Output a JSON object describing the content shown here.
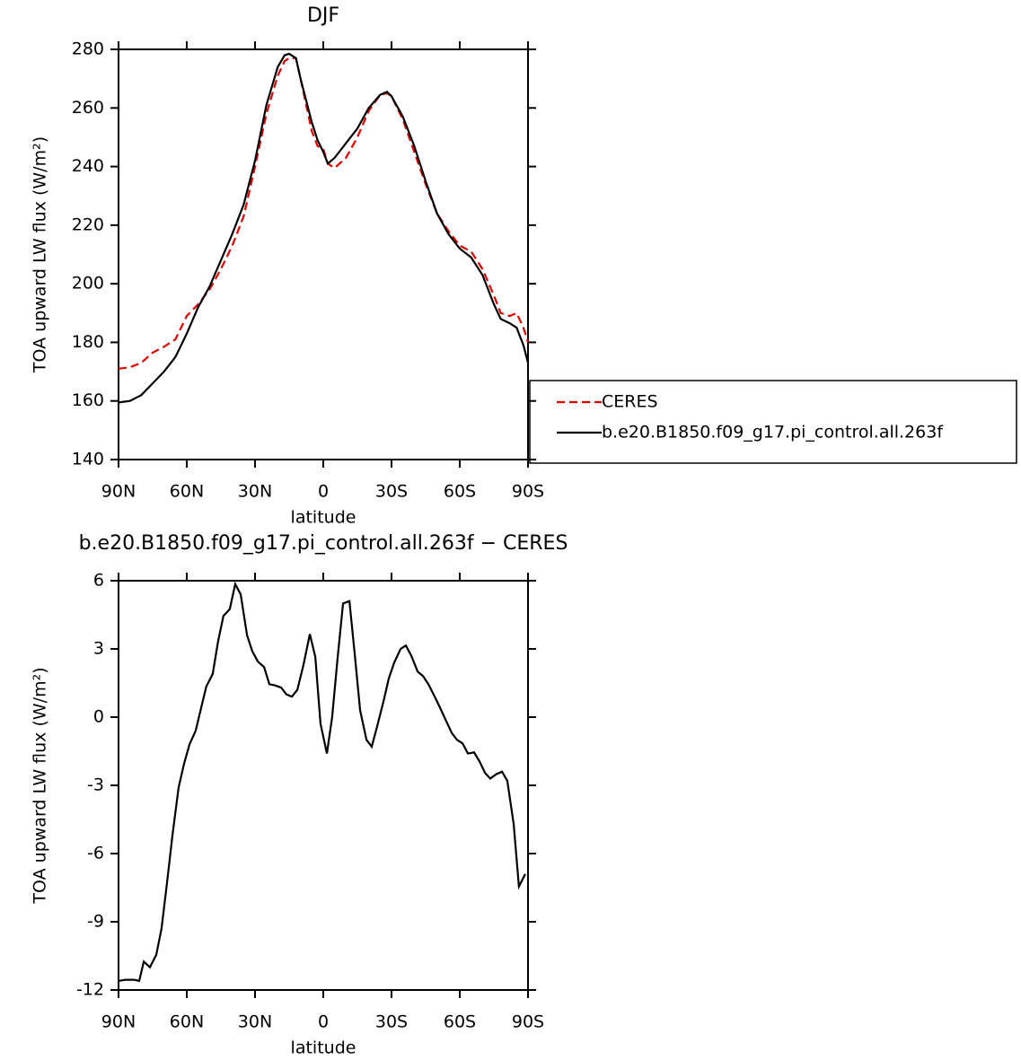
{
  "chart_data": [
    {
      "type": "line",
      "title": "DJF",
      "x_label": "latitude",
      "y_label": "TOA upward LW flux (W/m²)",
      "xlim": [
        90,
        -90
      ],
      "xticks": [
        {
          "value": 90,
          "label": "90N"
        },
        {
          "value": 60,
          "label": "60N"
        },
        {
          "value": 30,
          "label": "30N"
        },
        0,
        {
          "value": -30,
          "label": "30S"
        },
        {
          "value": -60,
          "label": "60S"
        },
        {
          "value": -90,
          "label": "90S"
        }
      ],
      "ylim": [
        140,
        280
      ],
      "yticks": [
        140,
        160,
        180,
        200,
        220,
        240,
        260,
        280
      ],
      "legend": "outside-right",
      "x": [
        90,
        85,
        80,
        75,
        70,
        65,
        60,
        55,
        50,
        45,
        40,
        35,
        30,
        25,
        20,
        17,
        15,
        12,
        10,
        5,
        2.5,
        0,
        -2,
        -5,
        -10,
        -15,
        -20,
        -25,
        -28,
        -30,
        -35,
        -40,
        -45,
        -50,
        -55,
        -60,
        -65,
        -70,
        -75,
        -78,
        -82,
        -85,
        -88,
        -90
      ],
      "series": [
        {
          "name": "CERES",
          "color": "#e00000",
          "dash": "dashed",
          "values": [
            171,
            171.5,
            173,
            176.5,
            178.5,
            181,
            189,
            193,
            198,
            205,
            213,
            223,
            240,
            258,
            271,
            276,
            277,
            277,
            270,
            252,
            247,
            246,
            241,
            239.5,
            243,
            250,
            259,
            264.5,
            265,
            264,
            256,
            245,
            234,
            224,
            218,
            213,
            211,
            205,
            196,
            190,
            189,
            190,
            185,
            180
          ]
        },
        {
          "name": "b.e20.B1850.f09_g17.pi_control.all.263f",
          "color": "#000000",
          "dash": "solid",
          "values": [
            159.5,
            160,
            162,
            166,
            170,
            175,
            183,
            192,
            199,
            208,
            217,
            227,
            242,
            261,
            274,
            278,
            278.5,
            277,
            270,
            255,
            249,
            245,
            241,
            243,
            248,
            253,
            260,
            264.5,
            265.5,
            264,
            257,
            247,
            235,
            224,
            217,
            212,
            209,
            203,
            193,
            188,
            186.5,
            185,
            179,
            173
          ]
        }
      ]
    },
    {
      "type": "line",
      "title": "b.e20.B1850.f09_g17.pi_control.all.263f − CERES",
      "x_label": "latitude",
      "y_label": "TOA upward LW flux (W/m²)",
      "xlim": [
        90,
        -90
      ],
      "xticks": [
        {
          "value": 90,
          "label": "90N"
        },
        {
          "value": 60,
          "label": "60N"
        },
        {
          "value": 30,
          "label": "30N"
        },
        0,
        {
          "value": -30,
          "label": "30S"
        },
        {
          "value": -60,
          "label": "60S"
        },
        {
          "value": -90,
          "label": "90S"
        }
      ],
      "ylim": [
        -12,
        6
      ],
      "yticks": [
        -12,
        -9,
        -6,
        -3,
        0,
        3,
        6
      ],
      "x": [
        90,
        86.8,
        83.3,
        80.9,
        78.9,
        76.2,
        73.4,
        71.1,
        68.7,
        66.3,
        63.6,
        61.2,
        58.8,
        56.1,
        53.7,
        51.4,
        48.6,
        46.3,
        43.9,
        41.1,
        38.7,
        36.3,
        33.5,
        31.2,
        28.8,
        26,
        23.7,
        21.3,
        18.5,
        16.2,
        13.8,
        11.4,
        8.7,
        5.9,
        3.5,
        1.2,
        -1.6,
        -3.9,
        -6.3,
        -8.7,
        -11.5,
        -13.8,
        -16.2,
        -19,
        -21.3,
        -23.7,
        -26.5,
        -28.8,
        -31.2,
        -34,
        -36.3,
        -38.7,
        -41.5,
        -43.9,
        -46.2,
        -49,
        -51.4,
        -53.7,
        -56.5,
        -58.8,
        -61.2,
        -63.6,
        -66.3,
        -68.7,
        -71.1,
        -73.4,
        -76.2,
        -78.6,
        -80.9,
        -83.7,
        -86,
        -88.8
      ],
      "series": [
        {
          "name": "difference",
          "color": "#000000",
          "dash": "solid",
          "values": [
            -11.6,
            -11.55,
            -11.55,
            -11.6,
            -10.75,
            -11,
            -10.45,
            -9.3,
            -7.3,
            -5.2,
            -3.1,
            -2.05,
            -1.2,
            -0.6,
            0.4,
            1.35,
            1.9,
            3.3,
            4.45,
            4.75,
            5.85,
            5.4,
            3.6,
            2.9,
            2.45,
            2.2,
            1.45,
            1.4,
            1.3,
            1,
            0.9,
            1.2,
            2.3,
            3.65,
            2.65,
            -0.3,
            -1.6,
            0,
            2.6,
            5,
            5.1,
            2.8,
            0.3,
            -1,
            -1.3,
            -0.4,
            0.7,
            1.7,
            2.4,
            3,
            3.15,
            2.7,
            2,
            1.8,
            1.45,
            0.9,
            0.4,
            -0.1,
            -0.7,
            -1,
            -1.15,
            -1.6,
            -1.55,
            -1.95,
            -2.45,
            -2.7,
            -2.5,
            -2.4,
            -2.8,
            -4.7,
            -7.45,
            -6.9
          ]
        }
      ]
    }
  ]
}
